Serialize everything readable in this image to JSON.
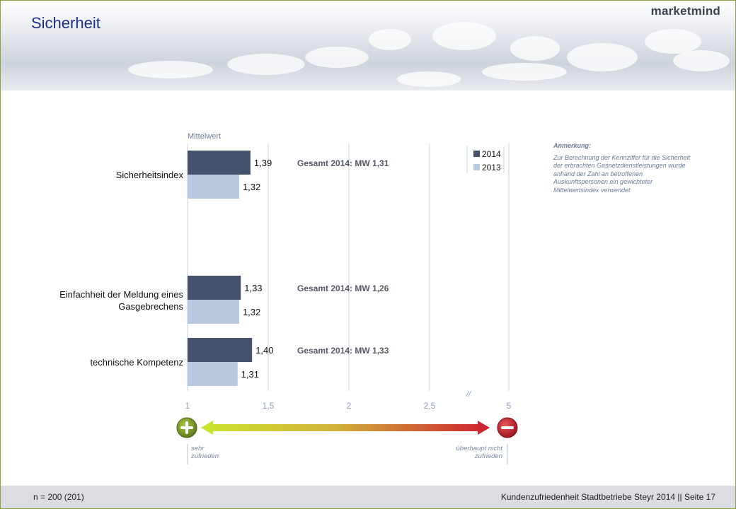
{
  "page": {
    "title": "Sicherheit",
    "logo": "marketmind"
  },
  "footer": {
    "left": "n = 200 (201)",
    "right": "Kundenzufriedenheit Stadtbetriebe Steyr 2014 || Seite 17"
  },
  "note": {
    "heading": "Anmerkung:",
    "text": "Zur Berechnung der Kennziffer für die Sicherheit der erbrachten Gasnetzdienstleistungen wurde anhand der Zahl an betroffenen Auskunftspersonen ein gewichteter Mittelwertsindex verwendet"
  },
  "scale": {
    "left_label": "sehr zufrieden",
    "right_label": "überhaupt nicht zufrieden",
    "break_mark": "//"
  },
  "chart_data": {
    "type": "bar",
    "orientation": "horizontal",
    "axis_title": "Mittelwert",
    "xlim": [
      1,
      5
    ],
    "xticks": [
      "1",
      "1,5",
      "2",
      "2,5",
      "5"
    ],
    "axis_break": "//",
    "grid": true,
    "legend": {
      "position": "top-right",
      "entries": [
        "2014",
        "2013"
      ]
    },
    "categories": [
      "Sicherheitsindex",
      "Einfachheit der Meldung eines Gasgebrechens",
      "technische Kompetenz"
    ],
    "series": [
      {
        "name": "2014",
        "values": [
          1.39,
          1.33,
          1.4
        ],
        "labels": [
          "1,39",
          "1,33",
          "1,40"
        ],
        "color": "#45526b"
      },
      {
        "name": "2013",
        "values": [
          1.32,
          1.32,
          1.31
        ],
        "labels": [
          "1,32",
          "1,32",
          "1,31"
        ],
        "color": "#b9c9e0"
      }
    ],
    "annotations": [
      "Gesamt 2014:  MW 1,31",
      "Gesamt 2014:  MW 1,26",
      "Gesamt 2014:  MW 1,33"
    ]
  },
  "colors": {
    "title": "#1c2f8a",
    "plus": "#7f9a22",
    "minus": "#c41f2a"
  }
}
